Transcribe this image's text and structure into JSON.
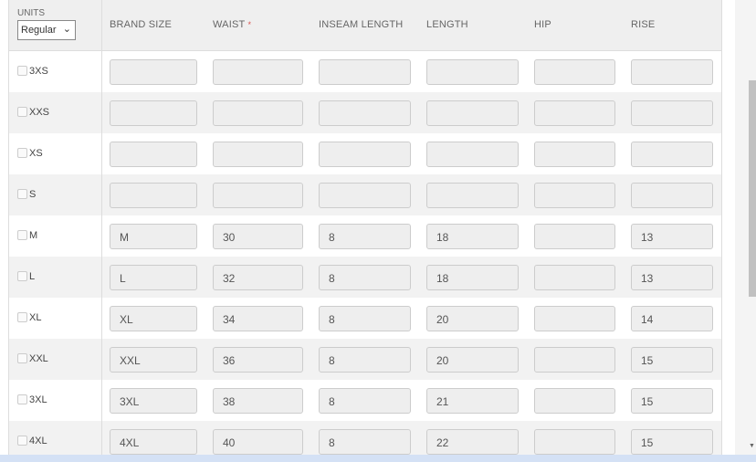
{
  "header": {
    "units_label": "UNITS",
    "units_value": "Regular",
    "columns": [
      "BRAND SIZE",
      "WAIST",
      "INSEAM LENGTH",
      "LENGTH",
      "HIP",
      "RISE"
    ],
    "required_mark": "*"
  },
  "rows": [
    {
      "size": "3XS",
      "values": [
        "",
        "",
        "",
        "",
        "",
        ""
      ]
    },
    {
      "size": "XXS",
      "values": [
        "",
        "",
        "",
        "",
        "",
        ""
      ]
    },
    {
      "size": "XS",
      "values": [
        "",
        "",
        "",
        "",
        "",
        ""
      ]
    },
    {
      "size": "S",
      "values": [
        "",
        "",
        "",
        "",
        "",
        ""
      ]
    },
    {
      "size": "M",
      "values": [
        "M",
        "30",
        "8",
        "18",
        "",
        "13"
      ]
    },
    {
      "size": "L",
      "values": [
        "L",
        "32",
        "8",
        "18",
        "",
        "13"
      ]
    },
    {
      "size": "XL",
      "values": [
        "XL",
        "34",
        "8",
        "20",
        "",
        "14"
      ]
    },
    {
      "size": "XXL",
      "values": [
        "XXL",
        "36",
        "8",
        "20",
        "",
        "15"
      ]
    },
    {
      "size": "3XL",
      "values": [
        "3XL",
        "38",
        "8",
        "21",
        "",
        "15"
      ]
    },
    {
      "size": "4XL",
      "values": [
        "4XL",
        "40",
        "8",
        "22",
        "",
        "15"
      ]
    }
  ]
}
